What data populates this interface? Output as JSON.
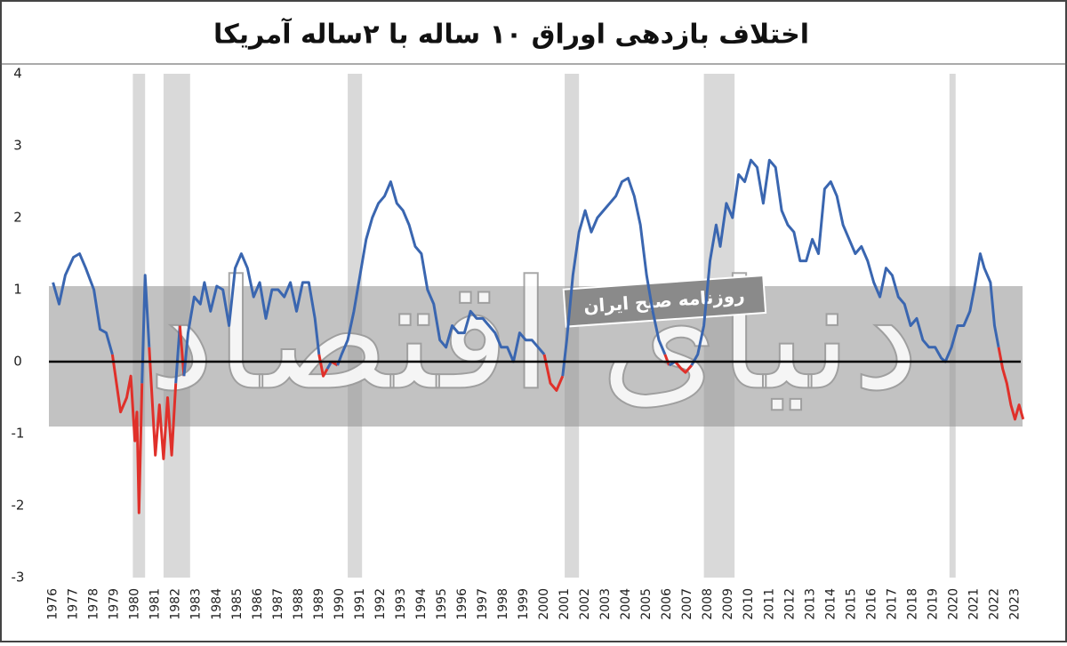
{
  "chart_data": {
    "type": "line",
    "title": "اختلاف بازدهی اوراق ۱۰ ساله با ۲ساله آمریکا",
    "watermark": {
      "logo": "دنیای اقتصاد",
      "tagline": "روزنامه صبح ایران"
    },
    "x": [
      1976.0,
      1976.3,
      1976.6,
      1977.0,
      1977.3,
      1977.6,
      1978.0,
      1978.3,
      1978.6,
      1978.9,
      1979.1,
      1979.3,
      1979.6,
      1979.8,
      1980.0,
      1980.1,
      1980.2,
      1980.35,
      1980.5,
      1980.7,
      1980.9,
      1981.0,
      1981.2,
      1981.4,
      1981.6,
      1981.8,
      1982.0,
      1982.2,
      1982.4,
      1982.6,
      1982.9,
      1983.2,
      1983.4,
      1983.7,
      1984.0,
      1984.3,
      1984.6,
      1984.9,
      1985.2,
      1985.5,
      1985.8,
      1986.1,
      1986.4,
      1986.7,
      1987.0,
      1987.3,
      1987.6,
      1987.9,
      1988.2,
      1988.5,
      1988.8,
      1989.0,
      1989.2,
      1989.4,
      1989.6,
      1989.9,
      1990.1,
      1990.4,
      1990.7,
      1991.0,
      1991.3,
      1991.6,
      1991.9,
      1992.2,
      1992.5,
      1992.8,
      1993.1,
      1993.4,
      1993.7,
      1994.0,
      1994.3,
      1994.6,
      1994.9,
      1995.2,
      1995.5,
      1995.8,
      1996.1,
      1996.4,
      1996.7,
      1997.0,
      1997.3,
      1997.6,
      1997.9,
      1998.2,
      1998.5,
      1998.8,
      1999.1,
      1999.4,
      1999.7,
      2000.0,
      2000.3,
      2000.6,
      2000.9,
      2001.1,
      2001.4,
      2001.7,
      2002.0,
      2002.3,
      2002.6,
      2002.9,
      2003.2,
      2003.5,
      2003.8,
      2004.1,
      2004.4,
      2004.7,
      2005.0,
      2005.3,
      2005.6,
      2005.9,
      2006.1,
      2006.4,
      2006.7,
      2006.9,
      2007.2,
      2007.5,
      2007.8,
      2008.1,
      2008.4,
      2008.6,
      2008.9,
      2009.2,
      2009.5,
      2009.8,
      2010.1,
      2010.4,
      2010.7,
      2011.0,
      2011.3,
      2011.6,
      2011.9,
      2012.2,
      2012.5,
      2012.8,
      2013.1,
      2013.4,
      2013.7,
      2014.0,
      2014.3,
      2014.6,
      2014.9,
      2015.2,
      2015.5,
      2015.8,
      2016.1,
      2016.4,
      2016.7,
      2017.0,
      2017.3,
      2017.6,
      2017.9,
      2018.2,
      2018.5,
      2018.8,
      2019.1,
      2019.4,
      2019.6,
      2019.9,
      2020.2,
      2020.5,
      2020.8,
      2021.0,
      2021.3,
      2021.5,
      2021.8,
      2022.0,
      2022.2,
      2022.4,
      2022.6,
      2022.8,
      2023.0,
      2023.2,
      2023.4
    ],
    "series": [
      {
        "color": "#3a66b0",
        "negative_color": "#e0302a",
        "values": [
          1.1,
          0.8,
          1.2,
          1.45,
          1.5,
          1.3,
          1.0,
          0.45,
          0.4,
          0.1,
          -0.3,
          -0.7,
          -0.5,
          -0.2,
          -1.1,
          -0.7,
          -2.1,
          -0.3,
          1.2,
          0.2,
          -0.8,
          -1.3,
          -0.6,
          -1.35,
          -0.5,
          -1.3,
          -0.3,
          0.5,
          -0.2,
          0.4,
          0.9,
          0.8,
          1.1,
          0.7,
          1.05,
          1.0,
          0.5,
          1.3,
          1.5,
          1.3,
          0.9,
          1.1,
          0.6,
          1.0,
          1.0,
          0.9,
          1.1,
          0.7,
          1.1,
          1.1,
          0.6,
          0.1,
          -0.2,
          -0.1,
          0.0,
          -0.05,
          0.1,
          0.3,
          0.7,
          1.2,
          1.7,
          2.0,
          2.2,
          2.3,
          2.5,
          2.2,
          2.1,
          1.9,
          1.6,
          1.5,
          1.0,
          0.8,
          0.3,
          0.2,
          0.5,
          0.4,
          0.4,
          0.7,
          0.6,
          0.6,
          0.5,
          0.4,
          0.2,
          0.2,
          0.0,
          0.4,
          0.3,
          0.3,
          0.2,
          0.1,
          -0.3,
          -0.4,
          -0.2,
          0.3,
          1.2,
          1.8,
          2.1,
          1.8,
          2.0,
          2.1,
          2.2,
          2.3,
          2.5,
          2.55,
          2.3,
          1.9,
          1.2,
          0.7,
          0.3,
          0.1,
          -0.05,
          0.0,
          -0.1,
          -0.15,
          -0.05,
          0.1,
          0.5,
          1.4,
          1.9,
          1.6,
          2.2,
          2.0,
          2.6,
          2.5,
          2.8,
          2.7,
          2.2,
          2.8,
          2.7,
          2.1,
          1.9,
          1.8,
          1.4,
          1.4,
          1.7,
          1.5,
          2.4,
          2.5,
          2.3,
          1.9,
          1.7,
          1.5,
          1.6,
          1.4,
          1.1,
          0.9,
          1.3,
          1.2,
          0.9,
          0.8,
          0.5,
          0.6,
          0.3,
          0.2,
          0.2,
          0.05,
          0.0,
          0.2,
          0.5,
          0.5,
          0.7,
          1.0,
          1.5,
          1.3,
          1.1,
          0.5,
          0.2,
          -0.1,
          -0.3,
          -0.6,
          -0.8,
          -0.6,
          -0.8
        ]
      }
    ],
    "recessions": [
      [
        1979.9,
        1980.5
      ],
      [
        1981.4,
        1982.7
      ],
      [
        1990.4,
        1991.1
      ],
      [
        2001.0,
        2001.7
      ],
      [
        2007.8,
        2009.3
      ],
      [
        2019.8,
        2020.1
      ]
    ],
    "recession_color": "#d9d9d9",
    "xlim": [
      1975.8,
      2023.5
    ],
    "xticks": [
      1976,
      1977,
      1978,
      1979,
      1980,
      1981,
      1982,
      1983,
      1984,
      1985,
      1986,
      1987,
      1988,
      1989,
      1990,
      1991,
      1992,
      1993,
      1994,
      1995,
      1996,
      1997,
      1998,
      1999,
      2000,
      2001,
      2002,
      2003,
      2004,
      2005,
      2006,
      2007,
      2008,
      2009,
      2010,
      2011,
      2012,
      2013,
      2014,
      2015,
      2016,
      2017,
      2018,
      2019,
      2020,
      2021,
      2022,
      2023
    ],
    "ylim": [
      -3,
      4
    ],
    "yticks": [
      -3,
      -2,
      -1,
      0,
      1,
      2,
      3,
      4
    ],
    "zero_line": true
  }
}
